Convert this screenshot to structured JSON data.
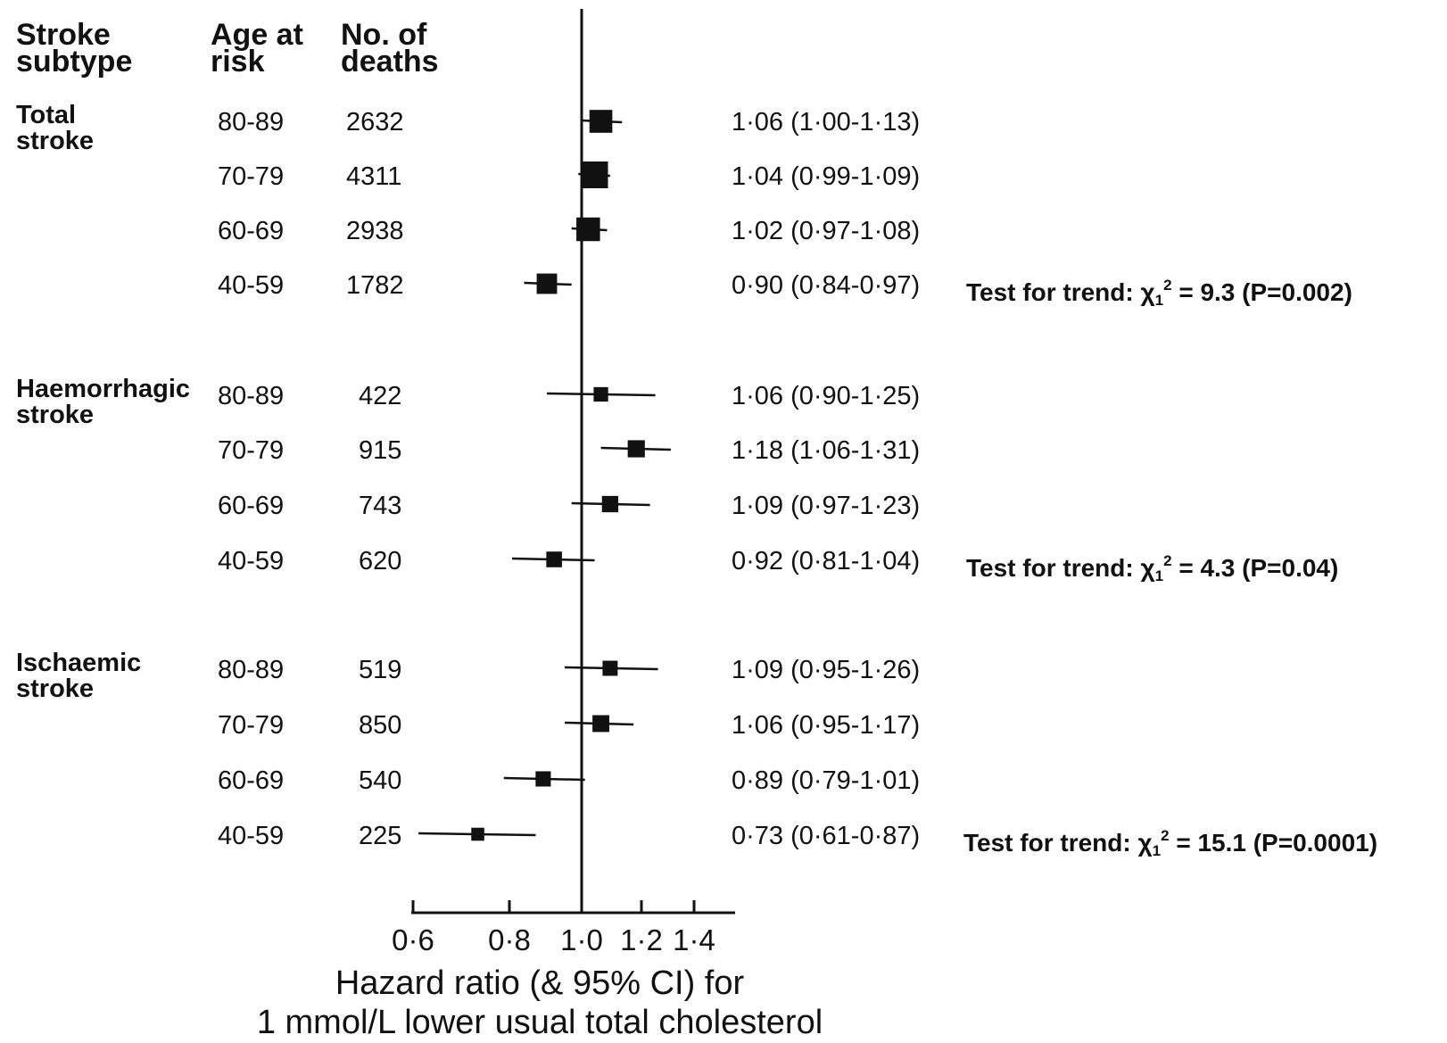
{
  "headers": {
    "subtype": [
      "Stroke",
      "subtype"
    ],
    "age": [
      "Age at",
      "risk"
    ],
    "deaths": [
      "No. of",
      "deaths"
    ]
  },
  "groups": [
    {
      "label": [
        "Total",
        "stroke"
      ],
      "trend": {
        "prefix": "Test for trend: ",
        "chi": "χ",
        "sub": "1",
        "sup": "2",
        "rest": " = 9.3 (P=0.002)"
      }
    },
    {
      "label": [
        "Haemorrhagic",
        "stroke"
      ],
      "trend": {
        "prefix": "Test for trend: ",
        "chi": "χ",
        "sub": "1",
        "sup": "2",
        "rest": " = 4.3 (P=0.04)"
      }
    },
    {
      "label": [
        "Ischaemic",
        "stroke"
      ],
      "trend": {
        "prefix": "Test for trend: ",
        "chi": "χ",
        "sub": "1",
        "sup": "2",
        "rest": " = 15.1 (P=0.0001)"
      }
    }
  ],
  "axis": {
    "tick_labels": [
      "0·6",
      "0·8",
      "1·0",
      "1·2",
      "1·4"
    ],
    "xlabel": [
      "Hazard ratio (& 95% CI) for",
      "1 mmol/L lower usual total cholesterol"
    ]
  },
  "chart_data": {
    "type": "forest",
    "xscale": "log",
    "xlim": [
      0.56,
      1.55
    ],
    "ticks": [
      0.6,
      0.8,
      1.0,
      1.2,
      1.4
    ],
    "reference_line": 1.0,
    "rows": [
      {
        "group": "Total stroke",
        "age": "80-89",
        "deaths": "2632",
        "hr": 1.06,
        "lo": 1.0,
        "hi": 1.13,
        "label": "1·06 (1·00-1·13)",
        "weight": 2632
      },
      {
        "group": "Total stroke",
        "age": "70-79",
        "deaths": "4311",
        "hr": 1.04,
        "lo": 0.99,
        "hi": 1.09,
        "label": "1·04 (0·99-1·09)",
        "weight": 4311
      },
      {
        "group": "Total stroke",
        "age": "60-69",
        "deaths": "2938",
        "hr": 1.02,
        "lo": 0.97,
        "hi": 1.08,
        "label": "1·02 (0·97-1·08)",
        "weight": 2938
      },
      {
        "group": "Total stroke",
        "age": "40-59",
        "deaths": "1782",
        "hr": 0.9,
        "lo": 0.84,
        "hi": 0.97,
        "label": "0·90 (0·84-0·97)",
        "weight": 1782
      },
      {
        "group": "Haemorrhagic stroke",
        "age": "80-89",
        "deaths": "422",
        "hr": 1.06,
        "lo": 0.9,
        "hi": 1.25,
        "label": "1·06 (0·90-1·25)",
        "weight": 422
      },
      {
        "group": "Haemorrhagic stroke",
        "age": "70-79",
        "deaths": "915",
        "hr": 1.18,
        "lo": 1.06,
        "hi": 1.31,
        "label": "1·18 (1·06-1·31)",
        "weight": 915
      },
      {
        "group": "Haemorrhagic stroke",
        "age": "60-69",
        "deaths": "743",
        "hr": 1.09,
        "lo": 0.97,
        "hi": 1.23,
        "label": "1·09 (0·97-1·23)",
        "weight": 743
      },
      {
        "group": "Haemorrhagic stroke",
        "age": "40-59",
        "deaths": "620",
        "hr": 0.92,
        "lo": 0.81,
        "hi": 1.04,
        "label": "0·92 (0·81-1·04)",
        "weight": 620
      },
      {
        "group": "Ischaemic stroke",
        "age": "80-89",
        "deaths": "519",
        "hr": 1.09,
        "lo": 0.95,
        "hi": 1.26,
        "label": "1·09 (0·95-1·26)",
        "weight": 519
      },
      {
        "group": "Ischaemic stroke",
        "age": "70-79",
        "deaths": "850",
        "hr": 1.06,
        "lo": 0.95,
        "hi": 1.17,
        "label": "1·06 (0·95-1·17)",
        "weight": 850
      },
      {
        "group": "Ischaemic stroke",
        "age": "60-69",
        "deaths": "540",
        "hr": 0.89,
        "lo": 0.79,
        "hi": 1.01,
        "label": "0·89 (0·79-1·01)",
        "weight": 540
      },
      {
        "group": "Ischaemic stroke",
        "age": "40-59",
        "deaths": "225",
        "hr": 0.73,
        "lo": 0.61,
        "hi": 0.87,
        "label": "0·73 (0·61-0·87)",
        "weight": 225
      }
    ]
  }
}
